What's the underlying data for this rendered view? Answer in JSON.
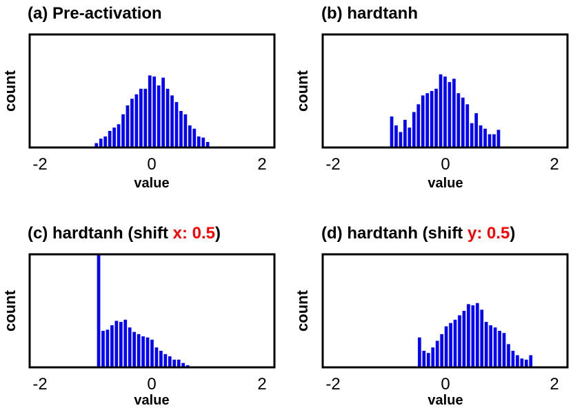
{
  "chart_data": [
    {
      "type": "bar",
      "title": "(a) Pre-activation",
      "title_highlight": "",
      "title_suffix": "",
      "xlabel": "value",
      "ylabel": "count",
      "xlim": [
        -2.2,
        2.2
      ],
      "ylim": [
        0,
        1.0
      ],
      "xticks": [
        "-2",
        "0",
        "2"
      ],
      "xtick_values": [
        -2,
        0,
        2
      ],
      "bar_width": 0.058,
      "color": "#0000ff",
      "x": [
        -1.0,
        -0.92,
        -0.84,
        -0.76,
        -0.68,
        -0.6,
        -0.52,
        -0.44,
        -0.36,
        -0.28,
        -0.2,
        -0.12,
        -0.04,
        0.04,
        0.12,
        0.2,
        0.28,
        0.36,
        0.44,
        0.52,
        0.6,
        0.68,
        0.76,
        0.84,
        0.92,
        1.0
      ],
      "values": [
        0.03,
        0.07,
        0.09,
        0.14,
        0.17,
        0.2,
        0.29,
        0.37,
        0.43,
        0.47,
        0.52,
        0.52,
        0.64,
        0.63,
        0.55,
        0.62,
        0.52,
        0.46,
        0.4,
        0.32,
        0.29,
        0.19,
        0.16,
        0.09,
        0.08,
        0.04
      ]
    },
    {
      "type": "bar",
      "title": "(b) hardtanh",
      "title_highlight": "",
      "title_suffix": "",
      "xlabel": "value",
      "ylabel": "count",
      "xlim": [
        -2.2,
        2.2
      ],
      "ylim": [
        0,
        1.0
      ],
      "xticks": [
        "-2",
        "0",
        "2"
      ],
      "xtick_values": [
        -2,
        0,
        2
      ],
      "bar_width": 0.058,
      "color": "#0000ff",
      "x": [
        -0.96,
        -0.88,
        -0.8,
        -0.72,
        -0.64,
        -0.56,
        -0.48,
        -0.4,
        -0.32,
        -0.24,
        -0.16,
        -0.08,
        0.0,
        0.08,
        0.16,
        0.24,
        0.32,
        0.4,
        0.48,
        0.56,
        0.64,
        0.72,
        0.8,
        0.88,
        0.96
      ],
      "values": [
        0.27,
        0.19,
        0.13,
        0.24,
        0.17,
        0.31,
        0.38,
        0.46,
        0.48,
        0.5,
        0.52,
        0.65,
        0.63,
        0.58,
        0.61,
        0.48,
        0.44,
        0.38,
        0.21,
        0.3,
        0.19,
        0.16,
        0.11,
        0.11,
        0.15
      ]
    },
    {
      "type": "bar",
      "title": "(c) hardtanh (shift ",
      "title_highlight": "x: 0.5",
      "title_suffix": ")",
      "xlabel": "value",
      "ylabel": "count",
      "xlim": [
        -2.2,
        2.2
      ],
      "ylim": [
        0,
        1.0
      ],
      "xticks": [
        "-2",
        "0",
        "2"
      ],
      "xtick_values": [
        -2,
        0,
        2
      ],
      "bar_width": 0.058,
      "color": "#0000ff",
      "x": [
        -0.96,
        -0.88,
        -0.8,
        -0.72,
        -0.64,
        -0.56,
        -0.48,
        -0.4,
        -0.32,
        -0.24,
        -0.16,
        -0.08,
        0.0,
        0.08,
        0.16,
        0.24,
        0.32,
        0.4,
        0.48,
        0.56,
        0.64
      ],
      "values": [
        1.0,
        0.32,
        0.33,
        0.37,
        0.41,
        0.4,
        0.42,
        0.35,
        0.31,
        0.29,
        0.27,
        0.26,
        0.24,
        0.17,
        0.14,
        0.11,
        0.09,
        0.06,
        0.06,
        0.03,
        0.01
      ]
    },
    {
      "type": "bar",
      "title": "(d) hardtanh (shift ",
      "title_highlight": "y: 0.5",
      "title_suffix": ")",
      "xlabel": "value",
      "ylabel": "count",
      "xlim": [
        -2.2,
        2.2
      ],
      "ylim": [
        0,
        1.0
      ],
      "xticks": [
        "-2",
        "0",
        "2"
      ],
      "xtick_values": [
        -2,
        0,
        2
      ],
      "bar_width": 0.058,
      "color": "#0000ff",
      "x": [
        -0.46,
        -0.38,
        -0.3,
        -0.22,
        -0.14,
        -0.06,
        0.02,
        0.1,
        0.18,
        0.26,
        0.34,
        0.42,
        0.5,
        0.58,
        0.66,
        0.74,
        0.82,
        0.9,
        0.98,
        1.06,
        1.14,
        1.22,
        1.3,
        1.38,
        1.46,
        1.54
      ],
      "values": [
        0.26,
        0.14,
        0.12,
        0.17,
        0.23,
        0.29,
        0.36,
        0.39,
        0.42,
        0.46,
        0.5,
        0.56,
        0.55,
        0.57,
        0.51,
        0.4,
        0.37,
        0.35,
        0.32,
        0.3,
        0.2,
        0.14,
        0.1,
        0.07,
        0.06,
        0.1
      ]
    }
  ]
}
